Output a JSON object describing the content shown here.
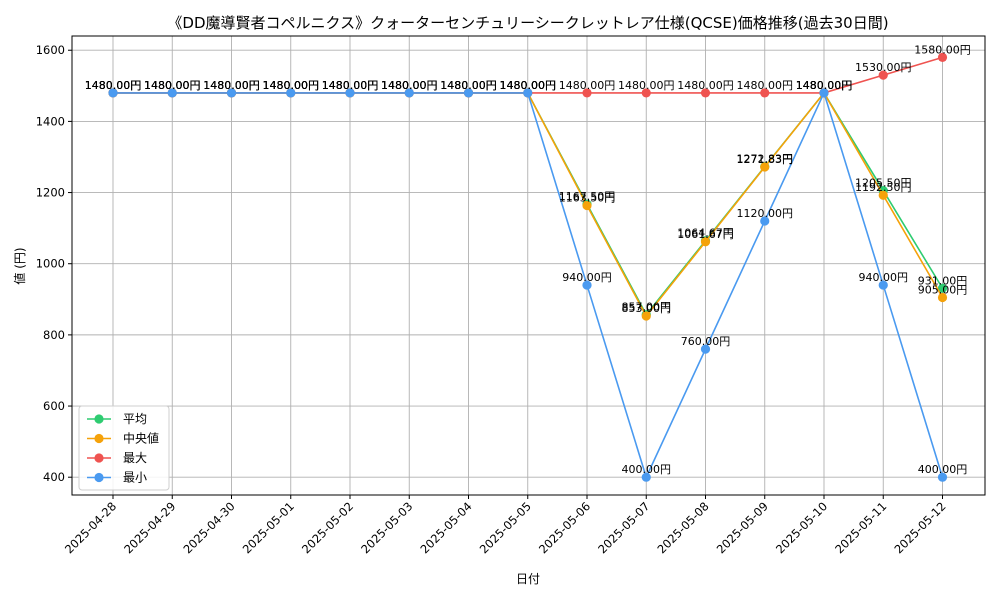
{
  "chart_data": {
    "type": "line",
    "title": "《DD魔導賢者コペルニクス》クォーターセンチュリーシークレットレア仕様(QCSE)価格推移(過去30日間)",
    "xlabel": "日付",
    "ylabel": "値 (円)",
    "ylim": [
      350,
      1640
    ],
    "yticks": [
      400,
      600,
      800,
      1000,
      1200,
      1400,
      1600
    ],
    "yticklabels": [
      "400",
      "600",
      "800",
      "1000",
      "1200",
      "1400",
      "1600"
    ],
    "grid": true,
    "legend_position": "bottom-left",
    "categories": [
      "2025-04-28",
      "2025-04-29",
      "2025-04-30",
      "2025-05-01",
      "2025-05-02",
      "2025-05-03",
      "2025-05-04",
      "2025-05-05",
      "2025-05-06",
      "2025-05-07",
      "2025-05-08",
      "2025-05-09",
      "2025-05-10",
      "2025-05-11",
      "2025-05-12"
    ],
    "series": [
      {
        "name": "平均",
        "color": "#2ecc71",
        "values": [
          1480,
          1480,
          1480,
          1480,
          1480,
          1480,
          1480,
          1480,
          1167.5,
          857,
          1064.67,
          1272.83,
          1480,
          1205.5,
          931
        ],
        "labels": [
          "1480.00円",
          "1480.00円",
          "1480.00円",
          "1480.00円",
          "1480.00円",
          "1480.00円",
          "1480.00円",
          "1480.00円",
          "1167.50円",
          "857.00円",
          "1064.67円",
          "1272.83円",
          "1480.00円",
          "1205.50円",
          "931.00円"
        ]
      },
      {
        "name": "中央値",
        "color": "#f5a20a",
        "values": [
          1480,
          1480,
          1480,
          1480,
          1480,
          1480,
          1480,
          1480,
          1163.5,
          853,
          1061.67,
          1271.83,
          1480,
          1192.5,
          905
        ],
        "labels": [
          "1480.00円",
          "1480.00円",
          "1480.00円",
          "1480.00円",
          "1480.00円",
          "1480.00円",
          "1480.00円",
          "1480.00円",
          "1163.50円",
          "853.00円",
          "1061.67円",
          "1271.83円",
          "1480.00円",
          "1192.50円",
          "905.00円"
        ]
      },
      {
        "name": "最大",
        "color": "#ef5350",
        "values": [
          1480,
          1480,
          1480,
          1480,
          1480,
          1480,
          1480,
          1480,
          1480,
          1480,
          1480,
          1480,
          1480,
          1530,
          1580
        ],
        "labels": [
          "1480.00円",
          "1480.00円",
          "1480.00円",
          "1480.00円",
          "1480.00円",
          "1480.00円",
          "1480.00円",
          "1480.00円",
          "1480.00円",
          "1480.00円",
          "1480.00円",
          "1480.00円",
          "1480.00円",
          "1530.00円",
          "1580.00円"
        ]
      },
      {
        "name": "最小",
        "color": "#4a9af0",
        "values": [
          1480,
          1480,
          1480,
          1480,
          1480,
          1480,
          1480,
          1480,
          940,
          400,
          760,
          1120,
          1480,
          940,
          400
        ],
        "labels": [
          "1480.00円",
          "1480.00円",
          "1480.00円",
          "1480.00円",
          "1480.00円",
          "1480.00円",
          "1480.00円",
          "1480.00円",
          "940.00円",
          "400.00円",
          "760.00円",
          "1120.00円",
          "1480.00円",
          "940.00円",
          "400.00円"
        ]
      }
    ]
  }
}
